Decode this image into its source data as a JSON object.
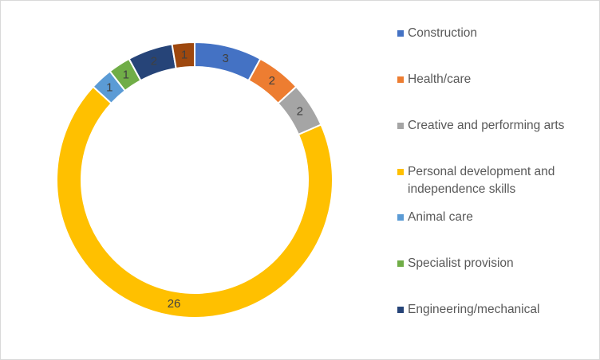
{
  "chart_data": {
    "type": "pie",
    "variant": "donut",
    "title": "",
    "legend_position": "right",
    "series": [
      {
        "name": "Construction",
        "value": 3,
        "color": "#4472C4"
      },
      {
        "name": "Health/care",
        "value": 2,
        "color": "#ED7D31"
      },
      {
        "name": "Creative and performing arts",
        "value": 2,
        "color": "#A5A5A5"
      },
      {
        "name": "Personal development and independence skills",
        "value": 26,
        "color": "#FFC000"
      },
      {
        "name": "Animal care",
        "value": 1,
        "color": "#5B9BD5"
      },
      {
        "name": "Specialist provision",
        "value": 1,
        "color": "#70AD47"
      },
      {
        "name": "Engineering/mechanical",
        "value": 2,
        "color": "#264478"
      },
      {
        "name": "",
        "value": 1,
        "color": "#9E480E"
      }
    ],
    "legend_entries": [
      "Construction",
      "Health/care",
      "Creative and performing arts",
      "Personal development and independence skills",
      "Animal care",
      "Specialist provision",
      "Engineering/mechanical"
    ]
  }
}
